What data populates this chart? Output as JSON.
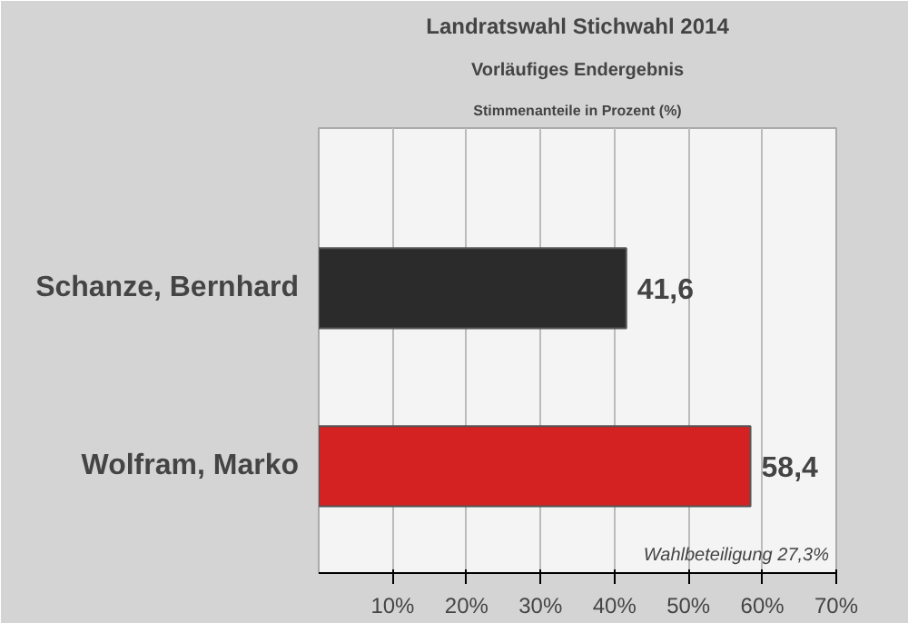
{
  "chart_data": {
    "type": "bar",
    "orientation": "horizontal",
    "title": "Landratswahl Stichwahl 2014",
    "subtitle": "Vorläufiges Endergebnis",
    "annotations": [
      "Stimmenanteile in Prozent (%)",
      "Wahlbeteiligung 27,3%"
    ],
    "categories": [
      "Schanze, Bernhard",
      "Wolfram, Marko"
    ],
    "values": [
      41.6,
      58.4
    ],
    "colors": [
      "#2b2b2b",
      "#d42222"
    ],
    "value_labels": [
      "41,6",
      "58,4"
    ],
    "xlim": [
      0,
      70
    ],
    "xticks": [
      {
        "value": 10,
        "label": "10%"
      },
      {
        "value": 20,
        "label": "20%"
      },
      {
        "value": 30,
        "label": "30%"
      },
      {
        "value": 40,
        "label": "40%"
      },
      {
        "value": 50,
        "label": "50%"
      },
      {
        "value": 60,
        "label": "60%"
      },
      {
        "value": 70,
        "label": "70%"
      }
    ],
    "grid": "x"
  }
}
